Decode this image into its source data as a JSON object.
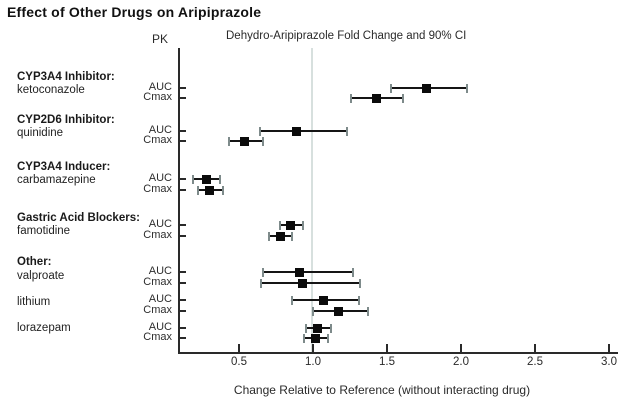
{
  "page_title": "Effect of Other Drugs on Aripiprazole",
  "chart_data": {
    "type": "forest-plot",
    "title": "Dehydro-Aripiprazole Fold Change and 90% CI",
    "pk_column_header": "PK",
    "xlabel": "Change Relative to Reference (without interacting drug)",
    "x_ticks": [
      "0.5",
      "1.0",
      "1.5",
      "2.0",
      "2.5",
      "3.0"
    ],
    "xlim": [
      0.09,
      3.06
    ],
    "reference_line": 1.0,
    "grid": false,
    "groups": [
      {
        "header": "CYP3A4 Inhibitor:",
        "drug": "ketoconazole",
        "rows": [
          {
            "pk": "AUC",
            "value": 1.77,
            "ci_low": 1.53,
            "ci_high": 2.04
          },
          {
            "pk": "Cmax",
            "value": 1.43,
            "ci_low": 1.26,
            "ci_high": 1.61
          }
        ]
      },
      {
        "header": "CYP2D6 Inhibitor:",
        "drug": "quinidine",
        "rows": [
          {
            "pk": "AUC",
            "value": 0.89,
            "ci_low": 0.64,
            "ci_high": 1.23
          },
          {
            "pk": "Cmax",
            "value": 0.54,
            "ci_low": 0.43,
            "ci_high": 0.66
          }
        ]
      },
      {
        "header": "CYP3A4 Inducer:",
        "drug": "carbamazepine",
        "rows": [
          {
            "pk": "AUC",
            "value": 0.28,
            "ci_low": 0.19,
            "ci_high": 0.37
          },
          {
            "pk": "Cmax",
            "value": 0.3,
            "ci_low": 0.22,
            "ci_high": 0.39
          }
        ]
      },
      {
        "header": "Gastric Acid Blockers:",
        "drug": "famotidine",
        "rows": [
          {
            "pk": "AUC",
            "value": 0.85,
            "ci_low": 0.78,
            "ci_high": 0.93
          },
          {
            "pk": "Cmax",
            "value": 0.78,
            "ci_low": 0.7,
            "ci_high": 0.86
          }
        ]
      },
      {
        "header": "Other:",
        "drug": "valproate",
        "rows": [
          {
            "pk": "AUC",
            "value": 0.91,
            "ci_low": 0.66,
            "ci_high": 1.27
          },
          {
            "pk": "Cmax",
            "value": 0.93,
            "ci_low": 0.65,
            "ci_high": 1.32
          }
        ]
      },
      {
        "header": null,
        "drug": "lithium",
        "rows": [
          {
            "pk": "AUC",
            "value": 1.07,
            "ci_low": 0.86,
            "ci_high": 1.31
          },
          {
            "pk": "Cmax",
            "value": 1.17,
            "ci_low": 1.0,
            "ci_high": 1.37
          }
        ]
      },
      {
        "header": null,
        "drug": "lorazepam",
        "rows": [
          {
            "pk": "AUC",
            "value": 1.03,
            "ci_low": 0.95,
            "ci_high": 1.12
          },
          {
            "pk": "Cmax",
            "value": 1.02,
            "ci_low": 0.94,
            "ci_high": 1.1
          }
        ]
      }
    ],
    "colors": {
      "marker": "#0b0b0b",
      "ci_line": "#151515",
      "ci_cap": "#7e8b8b",
      "reference_line": "#d7e0de",
      "axis": "#2a2a2a"
    }
  }
}
